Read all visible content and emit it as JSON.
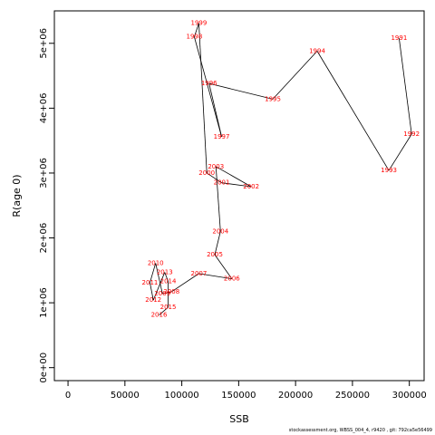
{
  "chart_data": {
    "type": "line",
    "xlabel": "SSB",
    "ylabel": "R(age 0)",
    "xlim": [
      -12000,
      313000
    ],
    "ylim": [
      -200000,
      5500000
    ],
    "xticks": [
      0,
      50000,
      100000,
      150000,
      200000,
      250000,
      300000
    ],
    "xtick_labels": [
      "0",
      "50000",
      "100000",
      "150000",
      "200000",
      "250000",
      "300000"
    ],
    "yticks": [
      0,
      1000000,
      2000000,
      3000000,
      4000000,
      5000000
    ],
    "ytick_labels": [
      "0e+00",
      "1e+06",
      "2e+06",
      "3e+06",
      "4e+06",
      "5e+06"
    ],
    "grid": false,
    "series": [
      {
        "line_color": "#000000",
        "label_color": "#ff0000",
        "points": [
          {
            "year": "1991",
            "x": 291000,
            "y": 5080000
          },
          {
            "year": "1992",
            "x": 302000,
            "y": 3600000
          },
          {
            "year": "1993",
            "x": 282000,
            "y": 3040000
          },
          {
            "year": "1994",
            "x": 219000,
            "y": 4880000
          },
          {
            "year": "1995",
            "x": 180000,
            "y": 4140000
          },
          {
            "year": "1996",
            "x": 124000,
            "y": 4380000
          },
          {
            "year": "1997",
            "x": 135000,
            "y": 3560000
          },
          {
            "year": "1998",
            "x": 111000,
            "y": 5100000
          },
          {
            "year": "1999",
            "x": 115000,
            "y": 5310000
          },
          {
            "year": "2000",
            "x": 122000,
            "y": 3000000
          },
          {
            "year": "2001",
            "x": 135000,
            "y": 2850000
          },
          {
            "year": "2002",
            "x": 161000,
            "y": 2790000
          },
          {
            "year": "2003",
            "x": 130000,
            "y": 3100000
          },
          {
            "year": "2004",
            "x": 134000,
            "y": 2100000
          },
          {
            "year": "2005",
            "x": 129000,
            "y": 1740000
          },
          {
            "year": "2006",
            "x": 144000,
            "y": 1370000
          },
          {
            "year": "2007",
            "x": 115000,
            "y": 1450000
          },
          {
            "year": "2008",
            "x": 91000,
            "y": 1170000
          },
          {
            "year": "2009",
            "x": 83000,
            "y": 1140000
          },
          {
            "year": "2010",
            "x": 77000,
            "y": 1610000
          },
          {
            "year": "2011",
            "x": 72000,
            "y": 1310000
          },
          {
            "year": "2012",
            "x": 75000,
            "y": 1040000
          },
          {
            "year": "2013",
            "x": 85000,
            "y": 1470000
          },
          {
            "year": "2014",
            "x": 88000,
            "y": 1330000
          },
          {
            "year": "2015",
            "x": 88000,
            "y": 930000
          },
          {
            "year": "2016",
            "x": 80000,
            "y": 810000
          }
        ]
      }
    ]
  },
  "footer": "stockassessment.org,  WBSS_004_4,  r9420 ,  git: 792ca5e56499"
}
